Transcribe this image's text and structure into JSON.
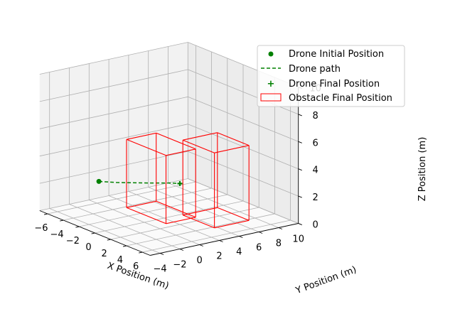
{
  "chart_data": {
    "type": "scatter",
    "projection": "3d",
    "title": "",
    "xlabel": "X Position (m)",
    "ylabel": "Y Position (m)",
    "zlabel": "Z Position (m)",
    "xlim": [
      -7,
      7
    ],
    "ylim": [
      -5,
      10
    ],
    "zlim": [
      0,
      10
    ],
    "xticks": [
      "−6",
      "−4",
      "−2",
      "0",
      "2",
      "4",
      "6"
    ],
    "yticks": [
      "−4",
      "−2",
      "0",
      "2",
      "4",
      "6",
      "8",
      "10"
    ],
    "zticks": [
      "0",
      "2",
      "4",
      "6",
      "8",
      "10"
    ],
    "grid": true,
    "legend_position": "upper-right",
    "colors": {
      "drone": "#008000",
      "obstacle": "#ff0000",
      "pane_left": "#f2f2f2",
      "pane_right": "#ececec",
      "pane_floor": "#fafafa",
      "grid": "#b0b0b0"
    },
    "series": [
      {
        "name": "Drone Initial Position",
        "kind": "point",
        "marker": "circle",
        "points": [
          {
            "x": -2.0,
            "y": -3.0,
            "z": 3.0
          }
        ]
      },
      {
        "name": "Drone path",
        "kind": "line",
        "linestyle": "dashed",
        "points": [
          {
            "x": -2.0,
            "y": -3.0,
            "z": 3.0
          },
          {
            "x": -1.0,
            "y": -2.0,
            "z": 3.0
          },
          {
            "x": 0.5,
            "y": 0.0,
            "z": 3.0
          },
          {
            "x": 1.5,
            "y": 1.5,
            "z": 3.0
          },
          {
            "x": 2.0,
            "y": 2.0,
            "z": 3.0
          }
        ]
      },
      {
        "name": "Drone Final Position",
        "kind": "point",
        "marker": "plus",
        "points": [
          {
            "x": 2.0,
            "y": 2.0,
            "z": 3.0
          }
        ]
      },
      {
        "name": "Obstacle Final Position",
        "kind": "boxes",
        "boxes": [
          {
            "x": [
              -1.0,
              4.0
            ],
            "y": [
              -1.0,
              2.0
            ],
            "z": [
              1.0,
              6.0
            ]
          },
          {
            "x": [
              3.0,
              7.0
            ],
            "y": [
              1.5,
              5.0
            ],
            "z": [
              1.0,
              6.5
            ]
          }
        ]
      }
    ]
  }
}
